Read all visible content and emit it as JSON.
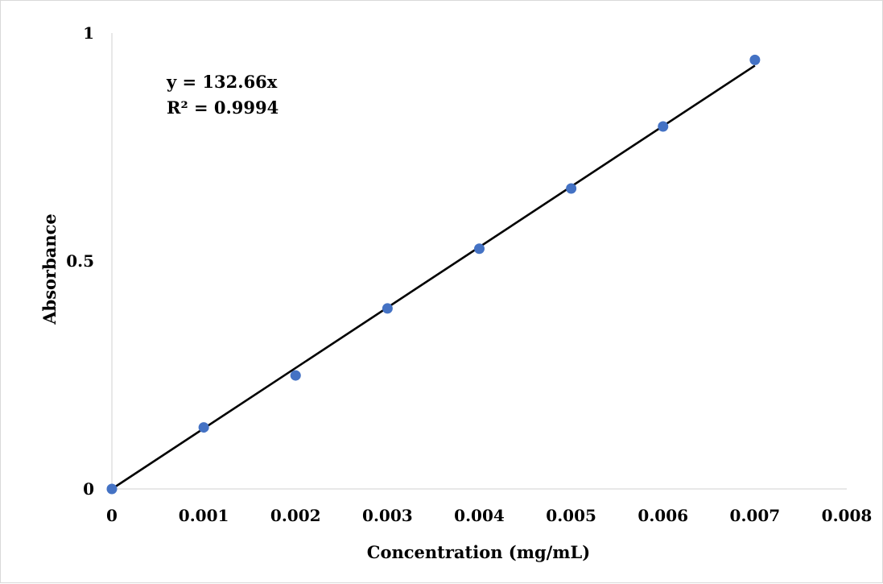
{
  "chart_data": {
    "type": "scatter",
    "title": "",
    "xlabel": "Concentration (mg/mL)",
    "ylabel": "Absorbance",
    "xlim": [
      0,
      0.008
    ],
    "ylim": [
      0,
      1
    ],
    "x_ticks": [
      "0",
      "0.001",
      "0.002",
      "0.003",
      "0.004",
      "0.005",
      "0.006",
      "0.007",
      "0.008"
    ],
    "y_ticks": [
      "0",
      "0.5",
      "1"
    ],
    "grid": false,
    "legend": "none",
    "series": [
      {
        "color": "#4472c4",
        "x": [
          0,
          0.001,
          0.002,
          0.003,
          0.004,
          0.005,
          0.006,
          0.007
        ],
        "y": [
          0,
          0.135,
          0.249,
          0.396,
          0.527,
          0.659,
          0.795,
          0.941
        ]
      }
    ],
    "trendline": {
      "type": "linear",
      "slope": 132.66,
      "intercept": 0,
      "x_range": [
        0,
        0.007
      ],
      "color": "#000000"
    },
    "annotations": {
      "equation": "y = 132.66x",
      "r_squared": "R² = 0.9994"
    }
  }
}
